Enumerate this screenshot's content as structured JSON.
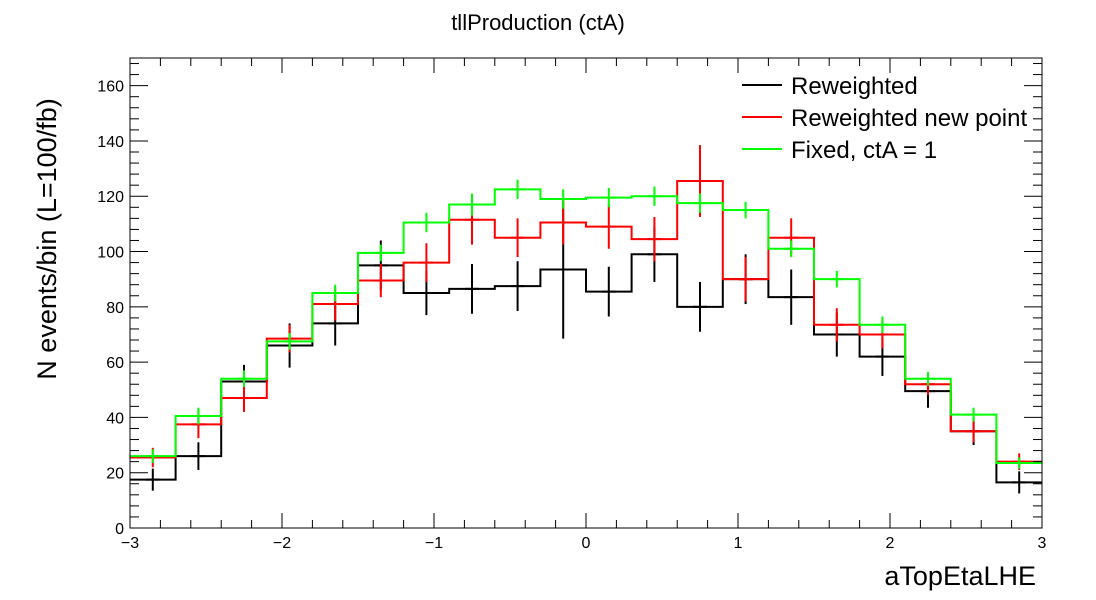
{
  "chart_data": {
    "type": "histogram",
    "title": "tllProduction (ctA)",
    "xlabel": "aTopEtaLHE",
    "ylabel": "N events/bin (L=100/fb)",
    "xlim": [
      -3,
      3
    ],
    "ylim": [
      0,
      170
    ],
    "x_ticks": [
      -3,
      -2,
      -1,
      0,
      1,
      2,
      3
    ],
    "x_tick_labels": [
      "−3",
      "−2",
      "−1",
      "0",
      "1",
      "2",
      "3"
    ],
    "y_ticks": [
      0,
      20,
      40,
      60,
      80,
      100,
      120,
      140,
      160
    ],
    "y_tick_labels": [
      "0",
      "20",
      "40",
      "60",
      "80",
      "100",
      "120",
      "140",
      "160"
    ],
    "bin_edges": [
      -3.0,
      -2.7,
      -2.4,
      -2.1,
      -1.8,
      -1.5,
      -1.2,
      -0.9,
      -0.6,
      -0.3,
      0.0,
      0.3,
      0.6,
      0.9,
      1.2,
      1.5,
      1.8,
      2.1,
      2.4,
      2.7,
      3.0
    ],
    "legend_position": "top-right",
    "series": [
      {
        "name": "Reweighted",
        "color": "#000000",
        "values": [
          17.5,
          26,
          53,
          66,
          74,
          95,
          85,
          86.5,
          87.5,
          93.5,
          85.5,
          99,
          80,
          90,
          83.5,
          70,
          62,
          49.5,
          35,
          16.5
        ],
        "errors": [
          4,
          5,
          6,
          8,
          8,
          9,
          8,
          9,
          9,
          25,
          9,
          10,
          9,
          9,
          10,
          8,
          7,
          6,
          5,
          4
        ]
      },
      {
        "name": "Reweighted new point",
        "color": "#ff0000",
        "values": [
          25.5,
          37.5,
          47,
          68.5,
          81,
          89.5,
          96,
          111.5,
          105,
          110.5,
          109,
          104.5,
          125.5,
          90,
          105,
          73.5,
          70,
          52,
          35,
          24
        ],
        "errors": [
          3.5,
          5,
          5,
          5,
          6,
          6,
          7,
          9,
          7,
          8,
          8,
          8,
          13,
          8,
          7,
          6,
          5,
          4,
          4,
          3
        ]
      },
      {
        "name": "Fixed, ctA = 1",
        "color": "#00ff00",
        "values": [
          26,
          40.5,
          54,
          67.5,
          85,
          99.5,
          110.5,
          117,
          122.5,
          119,
          119.5,
          120,
          117.5,
          115,
          101,
          90,
          73.5,
          54,
          41,
          23.5
        ],
        "errors": [
          2.5,
          3,
          3,
          3,
          3,
          3,
          3.5,
          4,
          3.5,
          3.5,
          3.5,
          3.5,
          3.5,
          3,
          3,
          3,
          3,
          2.5,
          2.5,
          2
        ]
      }
    ]
  }
}
